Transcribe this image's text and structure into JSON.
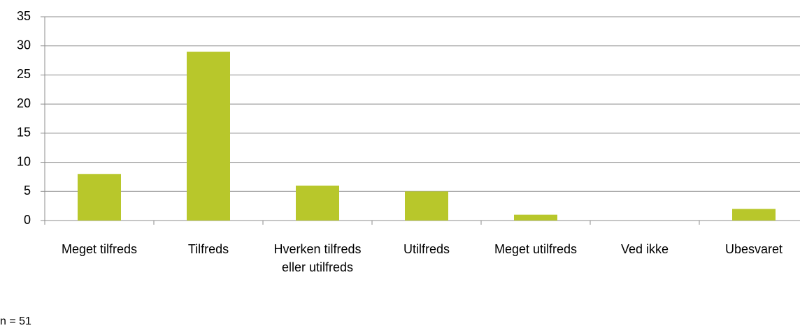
{
  "chart_data": {
    "type": "bar",
    "categories": [
      "Meget tilfreds",
      "Tilfreds",
      "Hverken tilfreds eller utilfreds",
      "Utilfreds",
      "Meget utilfreds",
      "Ved ikke",
      "Ubesvaret"
    ],
    "values": [
      8,
      29,
      6,
      5,
      1,
      0,
      2
    ],
    "color": "#b8c72b",
    "ylim": [
      0,
      35
    ],
    "yticks": [
      0,
      5,
      10,
      15,
      20,
      25,
      30,
      35
    ],
    "grid": true,
    "annotation": "n = 51"
  }
}
